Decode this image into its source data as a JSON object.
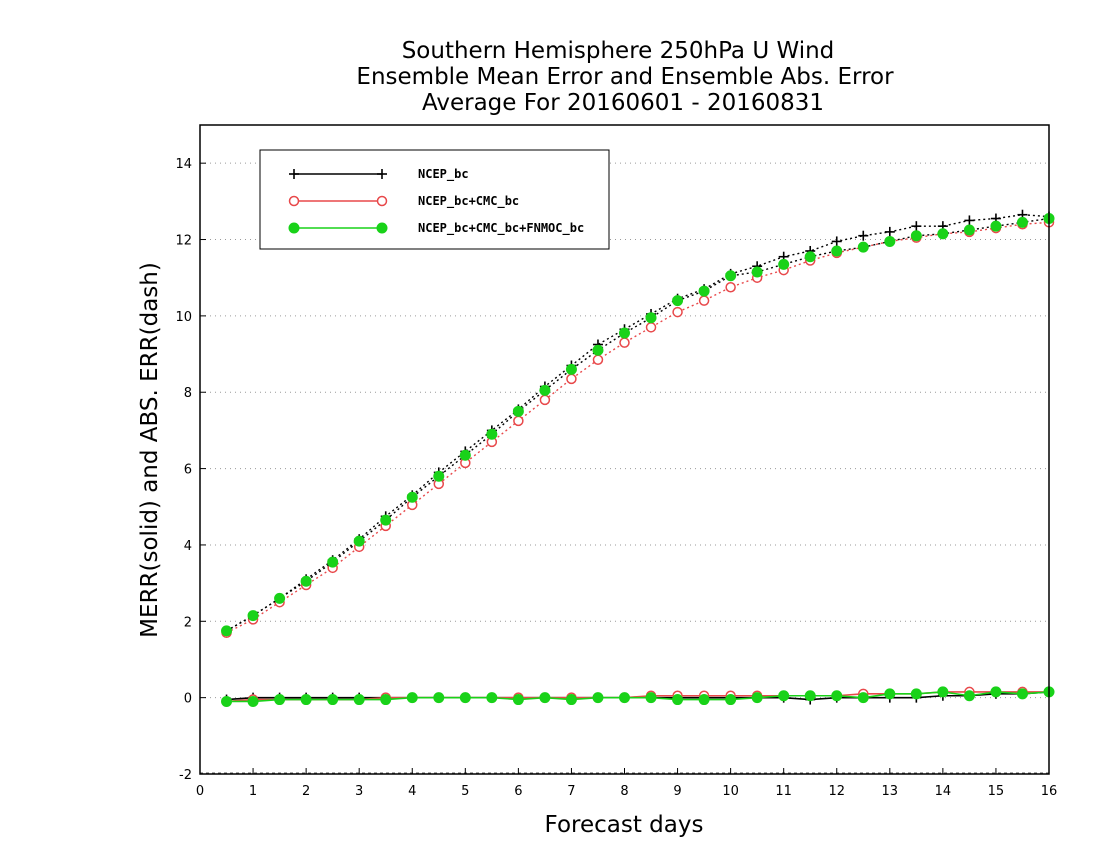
{
  "chart_data": {
    "type": "line",
    "title_lines": [
      "Southern Hemisphere 250hPa U Wind",
      "Ensemble Mean Error and Ensemble Abs. Error",
      "Average For 20160601 - 20160831"
    ],
    "xlabel": "Forecast days",
    "ylabel": "MERR(solid) and ABS. ERR(dash)",
    "xlim": [
      0,
      16
    ],
    "ylim": [
      -2,
      15
    ],
    "x_ticks": [
      "0",
      "1",
      "2",
      "3",
      "4",
      "5",
      "6",
      "7",
      "8",
      "9",
      "10",
      "11",
      "12",
      "13",
      "14",
      "15",
      "16"
    ],
    "y_ticks": [
      "-2",
      "0",
      "2",
      "4",
      "6",
      "8",
      "10",
      "12",
      "14"
    ],
    "grid": "horizontal dotted",
    "legend_position": "top-left",
    "x": [
      0.5,
      1,
      1.5,
      2,
      2.5,
      3,
      3.5,
      4,
      4.5,
      5,
      5.5,
      6,
      6.5,
      7,
      7.5,
      8,
      8.5,
      9,
      9.5,
      10,
      10.5,
      11,
      11.5,
      12,
      12.5,
      13,
      13.5,
      14,
      14.5,
      15,
      15.5,
      16
    ],
    "series": [
      {
        "name": "NCEP_bc",
        "color": "#000000",
        "marker": "plus",
        "abs_error": [
          1.75,
          2.15,
          2.6,
          3.1,
          3.6,
          4.15,
          4.75,
          5.3,
          5.9,
          6.45,
          7.0,
          7.55,
          8.15,
          8.7,
          9.25,
          9.65,
          10.05,
          10.45,
          10.7,
          11.1,
          11.3,
          11.55,
          11.7,
          11.95,
          12.1,
          12.2,
          12.35,
          12.35,
          12.5,
          12.55,
          12.65,
          12.6
        ],
        "mean_error": [
          -0.05,
          0.0,
          0.0,
          0.0,
          0.0,
          0.0,
          0.0,
          0.0,
          0.0,
          0.0,
          0.0,
          0.0,
          0.0,
          0.0,
          0.0,
          0.0,
          0.0,
          0.0,
          0.0,
          0.0,
          0.0,
          0.0,
          -0.05,
          0.0,
          0.0,
          0.0,
          0.0,
          0.05,
          0.05,
          0.1,
          0.1,
          0.15
        ]
      },
      {
        "name": "NCEP_bc+CMC_bc",
        "color": "#e8484a",
        "marker": "open-circle",
        "abs_error": [
          1.7,
          2.05,
          2.5,
          2.95,
          3.4,
          3.95,
          4.5,
          5.05,
          5.6,
          6.15,
          6.7,
          7.25,
          7.8,
          8.35,
          8.85,
          9.3,
          9.7,
          10.1,
          10.4,
          10.75,
          11.0,
          11.2,
          11.45,
          11.65,
          11.8,
          11.95,
          12.05,
          12.15,
          12.2,
          12.3,
          12.4,
          12.45
        ],
        "mean_error": [
          -0.1,
          -0.05,
          -0.05,
          -0.05,
          -0.05,
          -0.05,
          0.0,
          0.0,
          0.0,
          0.0,
          0.0,
          0.0,
          0.0,
          0.0,
          0.0,
          0.0,
          0.05,
          0.05,
          0.05,
          0.05,
          0.05,
          0.05,
          0.05,
          0.05,
          0.1,
          0.1,
          0.1,
          0.15,
          0.15,
          0.15,
          0.15,
          0.15
        ]
      },
      {
        "name": "NCEP_bc+CMC_bc+FNMOC_bc",
        "color": "#19d219",
        "marker": "filled-circle",
        "abs_error": [
          1.75,
          2.15,
          2.6,
          3.05,
          3.55,
          4.1,
          4.65,
          5.25,
          5.8,
          6.35,
          6.9,
          7.5,
          8.05,
          8.6,
          9.1,
          9.55,
          9.95,
          10.4,
          10.65,
          11.05,
          11.15,
          11.35,
          11.55,
          11.7,
          11.8,
          11.95,
          12.1,
          12.15,
          12.25,
          12.35,
          12.45,
          12.55
        ],
        "mean_error": [
          -0.1,
          -0.1,
          -0.05,
          -0.05,
          -0.05,
          -0.05,
          -0.05,
          0.0,
          0.0,
          0.0,
          0.0,
          -0.05,
          0.0,
          -0.05,
          0.0,
          0.0,
          0.0,
          -0.05,
          -0.05,
          -0.05,
          0.0,
          0.05,
          0.05,
          0.05,
          0.0,
          0.1,
          0.1,
          0.15,
          0.05,
          0.15,
          0.1,
          0.15
        ]
      }
    ]
  }
}
